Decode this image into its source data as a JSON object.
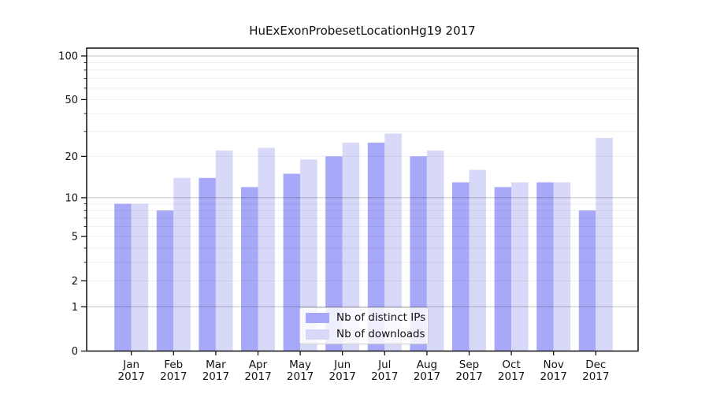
{
  "title": "HuExExonProbesetLocationHg19 2017",
  "chart_data": {
    "type": "bar",
    "title": "HuExExonProbesetLocationHg19 2017",
    "categories": [
      "Jan",
      "Feb",
      "Mar",
      "Apr",
      "May",
      "Jun",
      "Jul",
      "Aug",
      "Sep",
      "Oct",
      "Nov",
      "Dec"
    ],
    "xtick_year": "2017",
    "series": [
      {
        "name": "Nb of distinct IPs",
        "color": "#a8a8f8",
        "values": [
          9,
          8,
          14,
          12,
          15,
          20,
          25,
          20,
          13,
          12,
          13,
          8
        ]
      },
      {
        "name": "Nb of downloads",
        "color": "#d8d8f8",
        "values": [
          9,
          14,
          22,
          23,
          19,
          25,
          29,
          22,
          16,
          13,
          13,
          27
        ]
      }
    ],
    "yscale": "log1p",
    "ylim": [
      0,
      115
    ],
    "yticks_labeled": [
      0,
      1,
      2,
      5,
      10,
      20,
      50,
      100
    ],
    "yticks_minor": [
      3,
      4,
      6,
      7,
      8,
      9,
      30,
      40,
      60,
      70,
      80,
      90
    ],
    "yticks_major_emphasis": [
      1,
      10,
      100
    ],
    "grid": true,
    "legend_position": "lower center",
    "xlabel": "",
    "ylabel": ""
  },
  "legend": {
    "items": [
      {
        "label": "Nb of distinct IPs",
        "series": "ips"
      },
      {
        "label": "Nb of downloads",
        "series": "downloads"
      }
    ]
  },
  "colors": {
    "ips_bar": "#a8a8f8",
    "downloads_bar": "#d8d8f8",
    "grid_major": "rgba(0,0,0,0.24)",
    "grid_minor": "rgba(0,0,0,0.065)",
    "axis": "#000000",
    "text": "#111111",
    "legend_border": "#cccccc"
  }
}
